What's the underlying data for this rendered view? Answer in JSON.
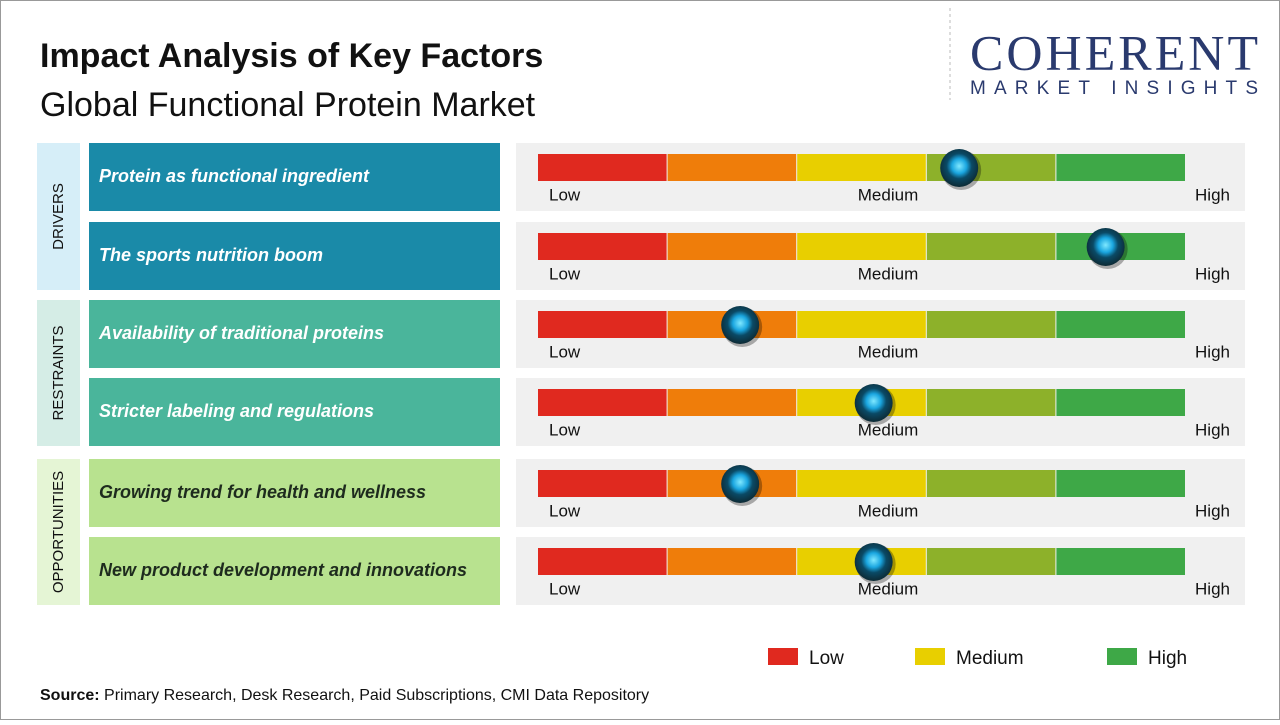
{
  "header": {
    "title": "Impact Analysis of Key Factors",
    "subtitle": "Global Functional Protein Market",
    "logo": {
      "name": "COHERENT",
      "tagline": "MARKET INSIGHTS"
    }
  },
  "scale_labels": [
    "Low",
    "Medium",
    "High"
  ],
  "segments": [
    "#e0291f",
    "#ef7d0a",
    "#e8cf00",
    "#8db12a",
    "#3ea847"
  ],
  "groups": [
    {
      "name": "DRIVERS",
      "color": "#1a8aa8",
      "band_color": "#d6eef8",
      "text_color": "#ffffff",
      "factors": [
        {
          "label": "Protein as functional ingredient",
          "impact": 3.25
        },
        {
          "label": "The sports nutrition boom",
          "impact": 4.38
        }
      ]
    },
    {
      "name": "RESTRAINTS",
      "color": "#4ab59b",
      "band_color": "#d5ede6",
      "text_color": "#ffffff",
      "factors": [
        {
          "label": "Availability of traditional proteins",
          "impact": 1.56
        },
        {
          "label": "Stricter labeling and regulations",
          "impact": 2.59
        }
      ]
    },
    {
      "name": "OPPORTUNITIES",
      "color": "#b8e28f",
      "band_color": "#e5f5d5",
      "text_color": "#1e2b1e",
      "factors": [
        {
          "label": "Growing trend for health and wellness",
          "impact": 1.56
        },
        {
          "label": "New product development and innovations",
          "impact": 2.59
        }
      ]
    }
  ],
  "legend": [
    {
      "label": "Low",
      "color": "#e0291f"
    },
    {
      "label": "Medium",
      "color": "#e8cf00"
    },
    {
      "label": "High",
      "color": "#3ea847"
    }
  ],
  "source": {
    "label": "Source:",
    "text": "Primary Research, Desk Research, Paid Subscriptions, CMI Data Repository"
  }
}
